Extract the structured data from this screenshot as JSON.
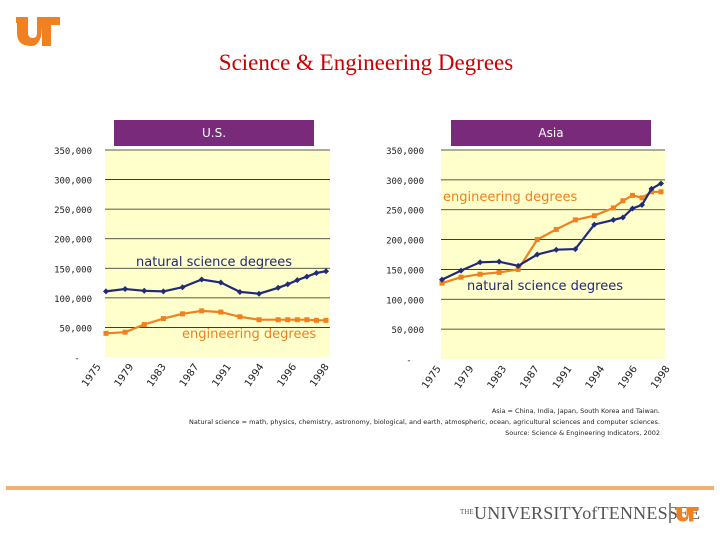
{
  "title": "Science & Engineering Degrees",
  "colors": {
    "orange": "#f08020",
    "navy": "#1f2a78",
    "panel_fill": "#ffffcc",
    "tab": "#7a2a7a",
    "title_red": "#cc0000"
  },
  "logo_icon": "ut-logo-icon",
  "notes": [
    "Asia = China, India, Japan, South Korea and Taiwan.",
    "Natural science = math, physics, chemistry, astronomy, biological, and earth, atmospheric, ocean, agricultural sciences and computer sciences.",
    "Source: Science & Engineering Indicators, 2002"
  ],
  "footer": {
    "the": "THE",
    "name": "UNIVERSITYofTENNESSEE"
  },
  "chart_data": [
    {
      "type": "line",
      "title": "U.S.",
      "ylim": [
        0,
        350000
      ],
      "y_ticks": [
        "-",
        "50,000",
        "100,000",
        "150,000",
        "200,000",
        "250,000",
        "300,000",
        "350,000"
      ],
      "x_tick_labels": [
        "1975",
        "1979",
        "1983",
        "1987",
        "1991",
        "1994",
        "1996",
        "1998"
      ],
      "x": [
        "1975",
        "1977",
        "1979",
        "1981",
        "1983",
        "1985",
        "1987",
        "1989",
        "1991",
        "1993",
        "1994",
        "1995",
        "1996",
        "1997",
        "1998"
      ],
      "grid": true,
      "series": [
        {
          "name": "natural science degrees",
          "color": "#1f2a78",
          "marker": "diamond",
          "values": [
            111000,
            115000,
            112000,
            111000,
            118000,
            131000,
            126000,
            110000,
            107000,
            117000,
            123000,
            130000,
            136000,
            142000,
            145000
          ]
        },
        {
          "name": "engineering degrees",
          "color": "#f08020",
          "marker": "square",
          "values": [
            40000,
            42000,
            55000,
            65000,
            73000,
            78000,
            76000,
            68000,
            63000,
            63000,
            63000,
            63000,
            63000,
            62000,
            62000
          ]
        }
      ]
    },
    {
      "type": "line",
      "title": "Asia",
      "ylim": [
        0,
        350000
      ],
      "y_ticks": [
        "-",
        "50,000",
        "100,000",
        "150,000",
        "200,000",
        "250,000",
        "300,000",
        "350,000"
      ],
      "x_tick_labels": [
        "1975",
        "1979",
        "1983",
        "1987",
        "1991",
        "1994",
        "1996",
        "1998"
      ],
      "x": [
        "1975",
        "1977",
        "1979",
        "1981",
        "1983",
        "1985",
        "1987",
        "1989",
        "1991",
        "1993",
        "1994",
        "1995",
        "1996",
        "1997",
        "1998"
      ],
      "grid": true,
      "series": [
        {
          "name": "engineering degrees",
          "color": "#f08020",
          "marker": "square",
          "values": [
            127000,
            137000,
            142000,
            145000,
            150000,
            200000,
            217000,
            233000,
            240000,
            253000,
            265000,
            274000,
            270000,
            280000,
            280000
          ]
        },
        {
          "name": "natural science degrees",
          "color": "#1f2a78",
          "marker": "diamond",
          "values": [
            133000,
            148000,
            162000,
            163000,
            156000,
            175000,
            183000,
            184000,
            225000,
            233000,
            237000,
            252000,
            258000,
            285000,
            294000
          ]
        }
      ]
    }
  ]
}
